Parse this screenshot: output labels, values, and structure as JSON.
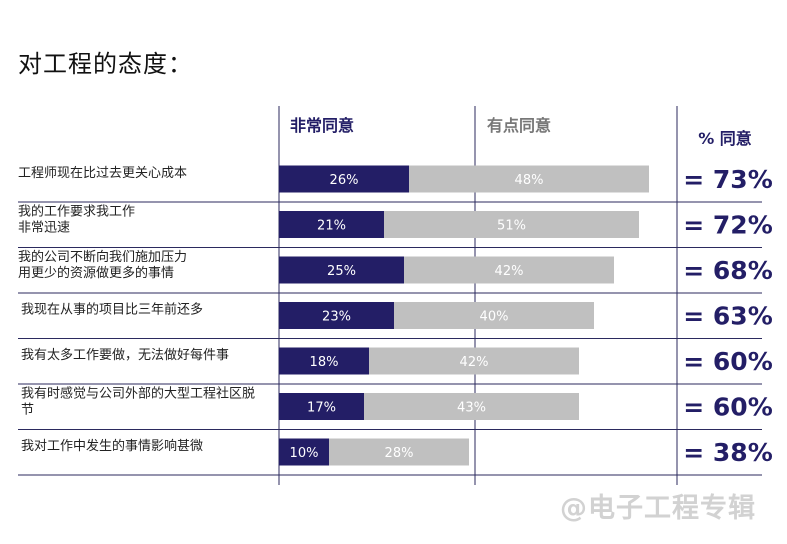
{
  "title": "对工程的态度：",
  "watermark": "@电子工程专辑",
  "chart_data": {
    "type": "bar",
    "stacked": true,
    "orientation": "horizontal",
    "categories": [
      [
        "工程师现在比过去更关心成本"
      ],
      [
        "我的工作要求我工作",
        "非常迅速"
      ],
      [
        "我的公司不断向我们施加压力",
        "用更少的资源做更多的事情"
      ],
      [
        "我现在从事的项目比三年前还多"
      ],
      [
        "我有太多工作要做，无法做好每件事"
      ],
      [
        "我有时感觉与公司外部的大型工程社区脱",
        "节"
      ],
      [
        "我对工作中发生的事情影响甚微"
      ]
    ],
    "series": [
      {
        "name": "非常同意",
        "color": "#231e66",
        "values": [
          26,
          21,
          25,
          23,
          18,
          17,
          10
        ],
        "labels": [
          "26%",
          "21%",
          "25%",
          "23%",
          "18%",
          "17%",
          "10%"
        ]
      },
      {
        "name": "有点同意",
        "color": "#c0c0c0",
        "values": [
          48,
          51,
          42,
          40,
          42,
          43,
          28
        ],
        "labels": [
          "48%",
          "51%",
          "42%",
          "40%",
          "42%",
          "43%",
          "28%"
        ]
      }
    ],
    "total_header": "% 同意",
    "totals": [
      "= 73%",
      "= 72%",
      "= 68%",
      "= 63%",
      "= 60%",
      "= 60%",
      "= 38%"
    ],
    "xlim": [
      0,
      100
    ],
    "grid": true
  }
}
